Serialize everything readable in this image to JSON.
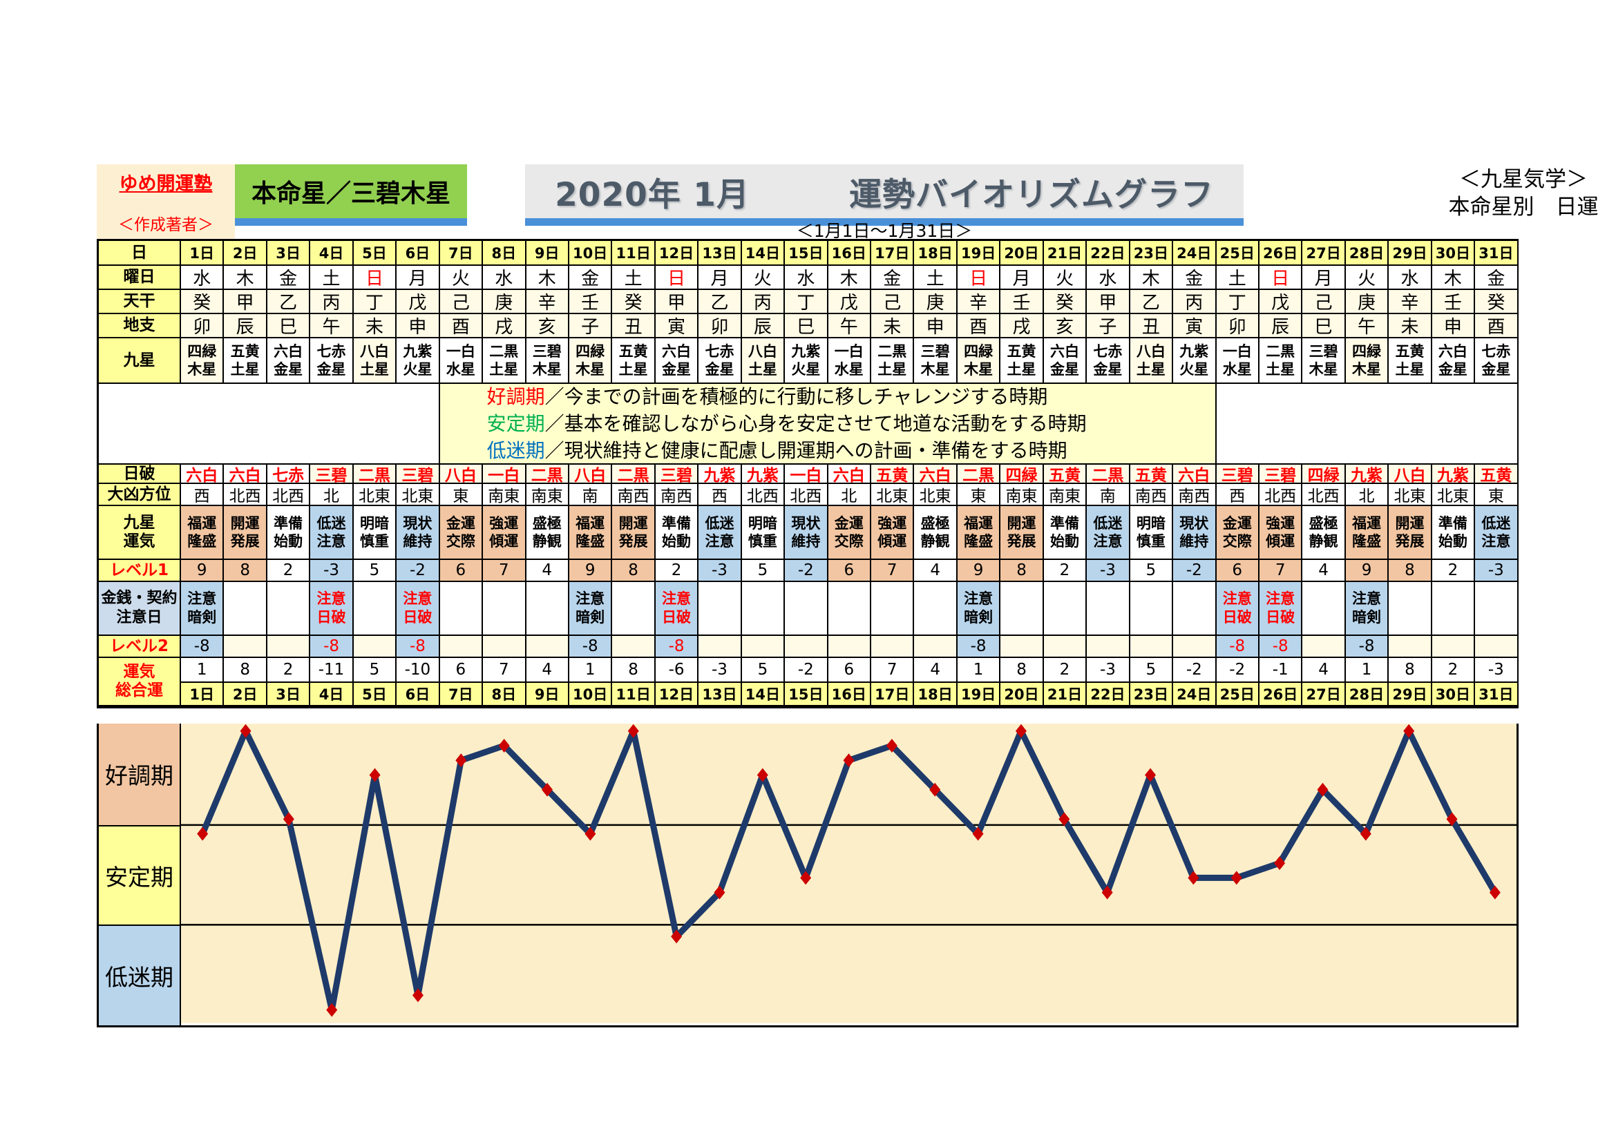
{
  "header": {
    "brand": "ゆめ開運塾",
    "author": "＜作成著者＞",
    "honmeisei": "本命星／三碧木星",
    "title": "2020年 1月　　　運勢バイオリズムグラフ",
    "date_range": "＜1月1日～1月31日＞",
    "school": "＜九星気学＞",
    "subtitle": "本命星別　日運"
  },
  "row_labels": {
    "day": "日",
    "youbi": "曜日",
    "tenkan": "天干",
    "chishi": "地支",
    "kyusei": "九星",
    "nippa": "日破",
    "daikyou": "大凶方位",
    "unki": "九星\n運気",
    "level1": "レベル1",
    "kinsen": "金銭・契約\n注意日",
    "level2": "レベル2",
    "sougou": "運気\n総合運"
  },
  "days": [
    "1日",
    "2日",
    "3日",
    "4日",
    "5日",
    "6日",
    "7日",
    "8日",
    "9日",
    "10日",
    "11日",
    "12日",
    "13日",
    "14日",
    "15日",
    "16日",
    "17日",
    "18日",
    "19日",
    "20日",
    "21日",
    "22日",
    "23日",
    "24日",
    "25日",
    "26日",
    "27日",
    "28日",
    "29日",
    "30日",
    "31日"
  ],
  "youbi": [
    "水",
    "木",
    "金",
    "土",
    "日",
    "月",
    "火",
    "水",
    "木",
    "金",
    "土",
    "日",
    "月",
    "火",
    "水",
    "木",
    "金",
    "土",
    "日",
    "月",
    "火",
    "水",
    "木",
    "金",
    "土",
    "日",
    "月",
    "火",
    "水",
    "木",
    "金"
  ],
  "tenkan": [
    "癸",
    "甲",
    "乙",
    "丙",
    "丁",
    "戊",
    "己",
    "庚",
    "辛",
    "壬",
    "癸",
    "甲",
    "乙",
    "丙",
    "丁",
    "戊",
    "己",
    "庚",
    "辛",
    "壬",
    "癸",
    "甲",
    "乙",
    "丙",
    "丁",
    "戊",
    "己",
    "庚",
    "辛",
    "壬",
    "癸"
  ],
  "chishi": [
    "卯",
    "辰",
    "巳",
    "午",
    "未",
    "申",
    "酉",
    "戌",
    "亥",
    "子",
    "丑",
    "寅",
    "卯",
    "辰",
    "巳",
    "午",
    "未",
    "申",
    "酉",
    "戌",
    "亥",
    "子",
    "丑",
    "寅",
    "卯",
    "辰",
    "巳",
    "午",
    "未",
    "申",
    "酉"
  ],
  "kyusei": [
    "四緑\n木星",
    "五黄\n土星",
    "六白\n金星",
    "七赤\n金星",
    "八白\n土星",
    "九紫\n火星",
    "一白\n水星",
    "二黒\n土星",
    "三碧\n木星",
    "四緑\n木星",
    "五黄\n土星",
    "六白\n金星",
    "七赤\n金星",
    "八白\n土星",
    "九紫\n火星",
    "一白\n水星",
    "二黒\n土星",
    "三碧\n木星",
    "四緑\n木星",
    "五黄\n土星",
    "六白\n金星",
    "七赤\n金星",
    "八白\n土星",
    "九紫\n火星",
    "一白\n水星",
    "二黒\n土星",
    "三碧\n木星",
    "四緑\n木星",
    "五黄\n土星",
    "六白\n金星",
    "七赤\n金星"
  ],
  "kyusei_highlight_stars": [
    "四緑",
    "八白"
  ],
  "nippa": [
    "六白",
    "六白",
    "七赤",
    "三碧",
    "二黒",
    "三碧",
    "八白",
    "一白",
    "二黒",
    "八白",
    "二黒",
    "三碧",
    "九紫",
    "九紫",
    "一白",
    "六白",
    "五黄",
    "六白",
    "二黒",
    "四緑",
    "五黄",
    "二黒",
    "五黄",
    "六白",
    "三碧",
    "三碧",
    "四緑",
    "九紫",
    "八白",
    "九紫",
    "五黄"
  ],
  "nippa_cream_days": [
    4,
    5,
    6,
    7,
    8,
    9,
    10,
    11,
    12,
    17,
    18,
    19,
    20,
    21,
    22,
    23,
    24,
    25,
    26,
    27,
    28,
    29,
    30,
    31
  ],
  "daikyou": [
    "西",
    "北西",
    "北西",
    "北",
    "北東",
    "北東",
    "東",
    "南東",
    "南東",
    "南",
    "南西",
    "南西",
    "西",
    "北西",
    "北西",
    "北",
    "北東",
    "北東",
    "東",
    "南東",
    "南東",
    "南",
    "南西",
    "南西",
    "西",
    "北西",
    "北西",
    "北",
    "北東",
    "北東",
    "東"
  ],
  "unki": [
    "福運\n隆盛",
    "開運\n発展",
    "準備\n始動",
    "低迷\n注意",
    "明暗\n慎重",
    "現状\n維持",
    "金運\n交際",
    "強運\n傾運",
    "盛極\n静観",
    "福運\n隆盛",
    "開運\n発展",
    "準備\n始動",
    "低迷\n注意",
    "明暗\n慎重",
    "現状\n維持",
    "金運\n交際",
    "強運\n傾運",
    "盛極\n静観",
    "福運\n隆盛",
    "開運\n発展",
    "準備\n始動",
    "低迷\n注意",
    "明暗\n慎重",
    "現状\n維持",
    "金運\n交際",
    "強運\n傾運",
    "盛極\n静観",
    "福運\n隆盛",
    "開運\n発展",
    "準備\n始動",
    "低迷\n注意"
  ],
  "level1": [
    9,
    8,
    2,
    -3,
    5,
    -2,
    6,
    7,
    4,
    9,
    8,
    2,
    -3,
    5,
    -2,
    6,
    7,
    4,
    9,
    8,
    2,
    -3,
    5,
    -2,
    6,
    7,
    4,
    9,
    8,
    2,
    -3
  ],
  "kinsen": {
    "1": {
      "text": "注意\n暗剣",
      "red": false
    },
    "4": {
      "text": "注意\n日破",
      "red": true
    },
    "6": {
      "text": "注意\n日破",
      "red": true
    },
    "10": {
      "text": "注意\n暗剣",
      "red": false
    },
    "12": {
      "text": "注意\n日破",
      "red": true
    },
    "19": {
      "text": "注意\n暗剣",
      "red": false
    },
    "25": {
      "text": "注意\n日破",
      "red": true
    },
    "26": {
      "text": "注意\n日破",
      "red": true
    },
    "28": {
      "text": "注意\n暗剣",
      "red": false
    }
  },
  "level2": {
    "1": {
      "v": "-8",
      "red": false
    },
    "4": {
      "v": "-8",
      "red": true
    },
    "6": {
      "v": "-8",
      "red": true
    },
    "10": {
      "v": "-8",
      "red": false
    },
    "12": {
      "v": "-8",
      "red": true
    },
    "19": {
      "v": "-8",
      "red": false
    },
    "25": {
      "v": "-8",
      "red": true
    },
    "26": {
      "v": "-8",
      "red": true
    },
    "28": {
      "v": "-8",
      "red": false
    }
  },
  "sougou": [
    1,
    8,
    2,
    -11,
    5,
    -10,
    6,
    7,
    4,
    1,
    8,
    -6,
    -3,
    5,
    -2,
    6,
    7,
    4,
    1,
    8,
    2,
    -3,
    5,
    -2,
    -2,
    -1,
    4,
    1,
    8,
    2,
    -3
  ],
  "legend": [
    {
      "term": "好調期",
      "color": "#ff0000",
      "text": "／今までの計画を積極的に行動に移しチャレンジする時期"
    },
    {
      "term": "安定期",
      "color": "#00b050",
      "text": "／基本を確認しながら心身を安定させて地道な活動をする時期"
    },
    {
      "term": "低迷期",
      "color": "#0070c0",
      "text": "／現状維持と健康に配慮し開運期への計画・準備をする時期"
    }
  ],
  "colors": {
    "accent_bar": "#4a90d8",
    "green_box": "#92d050",
    "label_yellow": "#ffff99",
    "ivory": "#fffbe6",
    "salmon": "#f2c6a2",
    "light_blue": "#b8d5ec",
    "chart_bg": "#fceec8",
    "line_navy": "#1e3a6a",
    "marker_red": "#cc0000",
    "red_text": "#ff0000"
  },
  "chart_data": {
    "type": "line",
    "title": "運勢バイオリズムグラフ 2020年1月（本命星 三碧木星）",
    "x_days": [
      1,
      2,
      3,
      4,
      5,
      6,
      7,
      8,
      9,
      10,
      11,
      12,
      13,
      14,
      15,
      16,
      17,
      18,
      19,
      20,
      21,
      22,
      23,
      24,
      25,
      26,
      27,
      28,
      29,
      30,
      31
    ],
    "values": [
      1,
      8,
      2,
      -11,
      5,
      -10,
      6,
      7,
      4,
      1,
      8,
      -6,
      -3,
      5,
      -2,
      6,
      7,
      4,
      1,
      8,
      2,
      -3,
      5,
      -2,
      -2,
      -1,
      4,
      1,
      8,
      2,
      -3
    ],
    "ymax": 8.5,
    "ymin": -11.9,
    "band_lines": [
      1.6,
      -5.2
    ],
    "bands": [
      {
        "label": "好調期",
        "bg": "#f2c6a2"
      },
      {
        "label": "安定期",
        "bg": "#ffff99"
      },
      {
        "label": "低迷期",
        "bg": "#b8d5ec"
      }
    ],
    "grid": false,
    "legend_position": "none",
    "line_color": "#1e3a6a",
    "marker": "diamond",
    "marker_color": "#cc0000",
    "bg": "#fceec8"
  }
}
